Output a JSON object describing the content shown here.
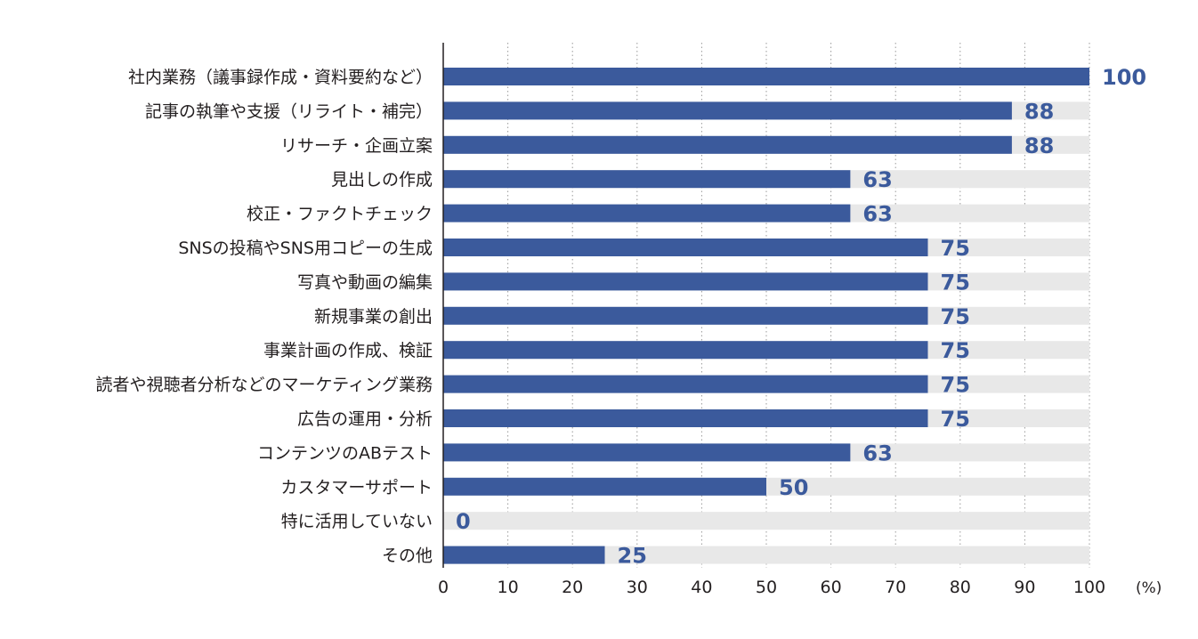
{
  "chart_data": {
    "type": "bar",
    "orientation": "horizontal",
    "categories": [
      "社内業務（議事録作成・資料要約など）",
      "記事の執筆や支援（リライト・補完）",
      "リサーチ・企画立案",
      "見出しの作成",
      "校正・ファクトチェック",
      "SNSの投稿やSNS用コピーの生成",
      "写真や動画の編集",
      "新規事業の創出",
      "事業計画の作成、検証",
      "読者や視聴者分析などのマーケティング業務",
      "広告の運用・分析",
      "コンテンツのABテスト",
      "カスタマーサポート",
      "特に活用していない",
      "その他"
    ],
    "values": [
      100,
      88,
      88,
      63,
      63,
      75,
      75,
      75,
      75,
      75,
      75,
      63,
      50,
      0,
      25
    ],
    "xlim": [
      0,
      100
    ],
    "x_ticks": [
      0,
      10,
      20,
      30,
      40,
      50,
      60,
      70,
      80,
      90,
      100
    ],
    "x_unit": "(%)",
    "grid": "vertical-dotted",
    "bar_color": "#3b5a9c",
    "track_color": "#e8e8e8",
    "value_label_color": "#3b5a9c",
    "show_data_labels": true
  }
}
